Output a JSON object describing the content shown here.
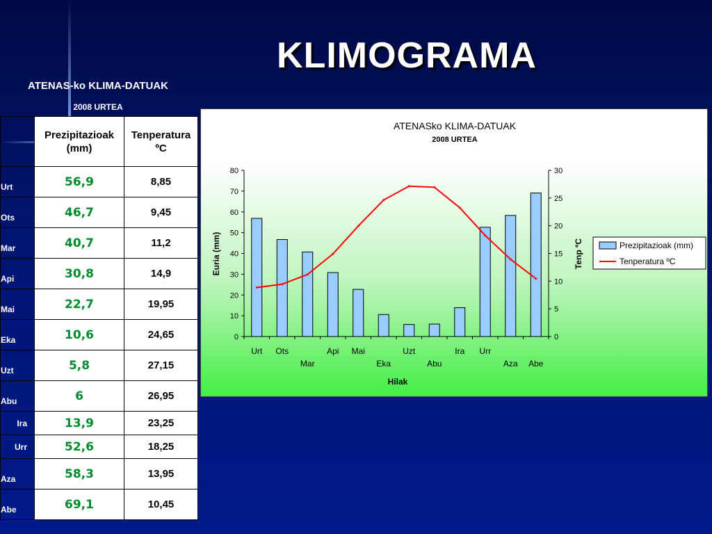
{
  "slide_title": "KLIMOGRAMA",
  "table": {
    "title": "ATENAS-ko KLIMA-DATUAK",
    "subtitle": "2008 URTEA",
    "col_precip": "Prezipitazioak (mm)",
    "col_temp": "Tenperatura  ºC",
    "rows": [
      {
        "month": "Urt",
        "precip": "56,9",
        "temp": "8,85"
      },
      {
        "month": "Ots",
        "precip": "46,7",
        "temp": "9,45"
      },
      {
        "month": "Mar",
        "precip": "40,7",
        "temp": "11,2"
      },
      {
        "month": "Api",
        "precip": "30,8",
        "temp": "14,9"
      },
      {
        "month": "Mai",
        "precip": "22,7",
        "temp": "19,95"
      },
      {
        "month": "Eka",
        "precip": "10,6",
        "temp": "24,65"
      },
      {
        "month": "Uzt",
        "precip": "5,8",
        "temp": "27,15"
      },
      {
        "month": "Abu",
        "precip": "6",
        "temp": "26,95"
      },
      {
        "month": "Ira",
        "precip": "13,9",
        "temp": "23,25"
      },
      {
        "month": "Urr",
        "precip": "52,6",
        "temp": "18,25"
      },
      {
        "month": "Aza",
        "precip": "58,3",
        "temp": "13,95"
      },
      {
        "month": "Abe",
        "precip": "69,1",
        "temp": "10,45"
      }
    ]
  },
  "chart_data": {
    "type": "bar",
    "title": "ATENASko KLIMA-DATUAK",
    "subtitle": "2008 URTEA",
    "xlabel": "Hilak",
    "ylabel": "Euria (mm)",
    "y2label": "Tenp ºC",
    "ylim": [
      0,
      80
    ],
    "y2lim": [
      0,
      30
    ],
    "yticks": [
      0,
      10,
      20,
      30,
      40,
      50,
      60,
      70,
      80
    ],
    "y2ticks": [
      0,
      5,
      10,
      15,
      20,
      25,
      30
    ],
    "grid": false,
    "legend_position": "right",
    "categories": [
      "Urt",
      "Ots",
      "Mar",
      "Api",
      "Mai",
      "Eka",
      "Uzt",
      "Abu",
      "Ira",
      "Urr",
      "Aza",
      "Abe"
    ],
    "series": [
      {
        "name": "Prezipitazioak (mm)",
        "type": "bar",
        "axis": "left",
        "color": "#99ccff",
        "values": [
          56.9,
          46.7,
          40.7,
          30.8,
          22.7,
          10.6,
          5.8,
          6,
          13.9,
          52.6,
          58.3,
          69.1
        ]
      },
      {
        "name": "Tenperatura  ºC",
        "type": "line",
        "axis": "right",
        "color": "#ff0000",
        "values": [
          8.85,
          9.45,
          11.2,
          14.9,
          19.95,
          24.65,
          27.15,
          26.95,
          23.25,
          18.25,
          13.95,
          10.45
        ]
      }
    ]
  }
}
